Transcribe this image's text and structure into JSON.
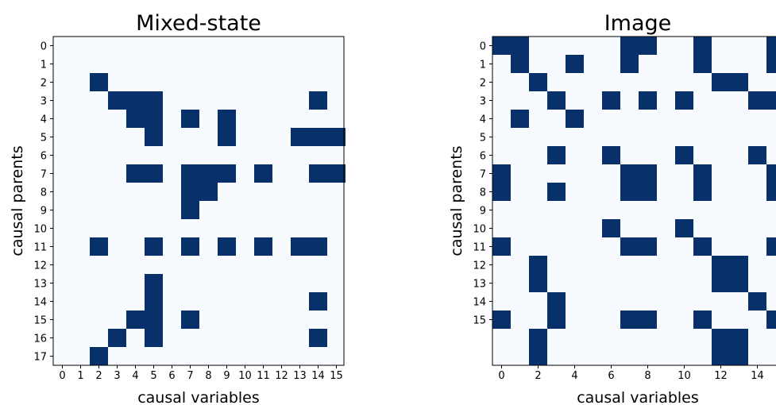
{
  "chart_data": [
    {
      "type": "heatmap",
      "title": "Mixed-state",
      "xlabel": "causal variables",
      "ylabel": "causal parents",
      "x_tick_labels": [
        "0",
        "1",
        "2",
        "3",
        "4",
        "5",
        "6",
        "7",
        "8",
        "9",
        "10",
        "11",
        "12",
        "13",
        "14",
        "15"
      ],
      "y_tick_labels": [
        "0",
        "1",
        "2",
        "3",
        "4",
        "5",
        "6",
        "7",
        "8",
        "9",
        "10",
        "11",
        "12",
        "13",
        "14",
        "15",
        "16",
        "17"
      ],
      "colors": {
        "on": "#08306b",
        "off": "#f7fbff"
      },
      "cells": [
        [
          2,
          2
        ],
        [
          3,
          3
        ],
        [
          4,
          3
        ],
        [
          5,
          3
        ],
        [
          14,
          3
        ],
        [
          4,
          4
        ],
        [
          5,
          4
        ],
        [
          7,
          4
        ],
        [
          9,
          4
        ],
        [
          5,
          5
        ],
        [
          9,
          5
        ],
        [
          13,
          5
        ],
        [
          14,
          5
        ],
        [
          15,
          5
        ],
        [
          4,
          7
        ],
        [
          5,
          7
        ],
        [
          7,
          7
        ],
        [
          8,
          7
        ],
        [
          9,
          7
        ],
        [
          11,
          7
        ],
        [
          14,
          7
        ],
        [
          15,
          7
        ],
        [
          7,
          8
        ],
        [
          8,
          8
        ],
        [
          7,
          9
        ],
        [
          2,
          11
        ],
        [
          5,
          11
        ],
        [
          7,
          11
        ],
        [
          9,
          11
        ],
        [
          11,
          11
        ],
        [
          13,
          11
        ],
        [
          14,
          11
        ],
        [
          5,
          13
        ],
        [
          5,
          14
        ],
        [
          14,
          14
        ],
        [
          4,
          15
        ],
        [
          5,
          15
        ],
        [
          7,
          15
        ],
        [
          3,
          16
        ],
        [
          5,
          16
        ],
        [
          14,
          16
        ],
        [
          2,
          17
        ]
      ]
    },
    {
      "type": "heatmap",
      "title": "Image",
      "xlabel": "causal variables",
      "ylabel": "causal parents",
      "x_tick_labels": [
        "0",
        "2",
        "4",
        "6",
        "8",
        "10",
        "12",
        "14"
      ],
      "x_tick_values": [
        0,
        2,
        4,
        6,
        8,
        10,
        12,
        14
      ],
      "y_tick_labels": [
        "0",
        "1",
        "2",
        "3",
        "4",
        "5",
        "6",
        "7",
        "8",
        "9",
        "10",
        "11",
        "12",
        "13",
        "14",
        "15"
      ],
      "colors": {
        "on": "#08306b",
        "off": "#f7fbff"
      },
      "cells": [
        [
          0,
          0
        ],
        [
          1,
          0
        ],
        [
          7,
          0
        ],
        [
          8,
          0
        ],
        [
          11,
          0
        ],
        [
          15,
          0
        ],
        [
          1,
          1
        ],
        [
          4,
          1
        ],
        [
          7,
          1
        ],
        [
          11,
          1
        ],
        [
          15,
          1
        ],
        [
          2,
          2
        ],
        [
          12,
          2
        ],
        [
          13,
          2
        ],
        [
          3,
          3
        ],
        [
          6,
          3
        ],
        [
          8,
          3
        ],
        [
          10,
          3
        ],
        [
          14,
          3
        ],
        [
          15,
          3
        ],
        [
          1,
          4
        ],
        [
          4,
          4
        ],
        [
          3,
          6
        ],
        [
          6,
          6
        ],
        [
          10,
          6
        ],
        [
          14,
          6
        ],
        [
          0,
          7
        ],
        [
          7,
          7
        ],
        [
          8,
          7
        ],
        [
          11,
          7
        ],
        [
          15,
          7
        ],
        [
          0,
          8
        ],
        [
          3,
          8
        ],
        [
          7,
          8
        ],
        [
          8,
          8
        ],
        [
          11,
          8
        ],
        [
          15,
          8
        ],
        [
          6,
          10
        ],
        [
          10,
          10
        ],
        [
          0,
          11
        ],
        [
          7,
          11
        ],
        [
          8,
          11
        ],
        [
          11,
          11
        ],
        [
          15,
          11
        ],
        [
          2,
          12
        ],
        [
          12,
          12
        ],
        [
          13,
          12
        ],
        [
          2,
          13
        ],
        [
          12,
          13
        ],
        [
          13,
          13
        ],
        [
          3,
          14
        ],
        [
          14,
          14
        ],
        [
          0,
          15
        ],
        [
          3,
          15
        ],
        [
          7,
          15
        ],
        [
          8,
          15
        ],
        [
          11,
          15
        ],
        [
          15,
          15
        ],
        [
          2,
          16
        ],
        [
          12,
          16
        ],
        [
          13,
          16
        ],
        [
          2,
          17
        ],
        [
          12,
          17
        ],
        [
          13,
          17
        ]
      ]
    }
  ]
}
